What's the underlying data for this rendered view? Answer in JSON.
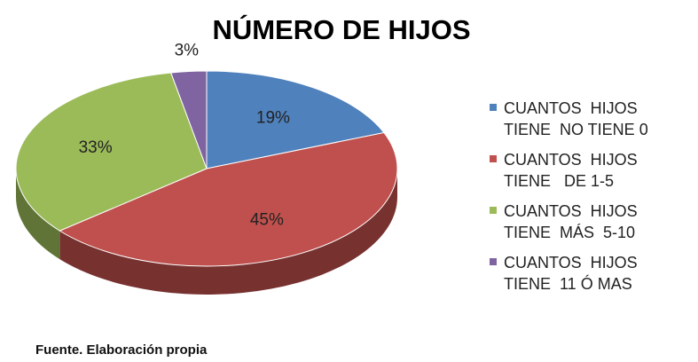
{
  "chart_data": {
    "type": "pie",
    "title": "NÚMERO DE HIJOS",
    "categories": [
      "CUANTOS  HIJOS TIENE  NO TIENE 0",
      "CUANTOS  HIJOS TIENE   DE 1-5",
      "CUANTOS  HIJOS TIENE  MÁS  5-10",
      "CUANTOS  HIJOS TIENE  11 Ó MAS"
    ],
    "values": [
      19,
      45,
      33,
      3
    ],
    "value_labels": [
      "19%",
      "45%",
      "33%",
      "3%"
    ],
    "colors": [
      "#4f81bd",
      "#c0504d",
      "#9bbb59",
      "#8064a2"
    ],
    "legend": "right",
    "source": "Fuente. Elaboración propia"
  }
}
